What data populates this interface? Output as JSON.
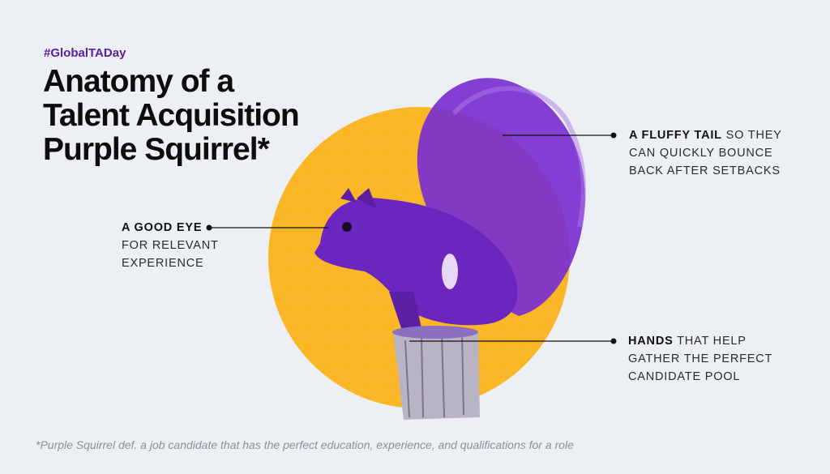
{
  "hashtag": "#GlobalTADay",
  "title": {
    "line1": "Anatomy of a",
    "line2": "Talent Acquisition",
    "line3": "Purple Squirrel*"
  },
  "callouts": {
    "eye": {
      "bold": "A GOOD EYE",
      "line2": "FOR RELEVANT",
      "line3": "EXPERIENCE"
    },
    "tail": {
      "bold": "A FLUFFY TAIL",
      "rest": " SO THEY",
      "line2": "CAN QUICKLY BOUNCE",
      "line3": "BACK AFTER SETBACKS"
    },
    "hands": {
      "bold": "HANDS",
      "rest": " THAT HELP",
      "line2": "GATHER THE PERFECT",
      "line3": "CANDIDATE POOL"
    }
  },
  "footnote": "*Purple Squirrel def. a job candidate that has the perfect education, experience, and qualifications for a role",
  "colors": {
    "background": "#eceff4",
    "circle": "#fbb626",
    "squirrel": "#7a2fd0",
    "accent": "#5b1f9c"
  }
}
